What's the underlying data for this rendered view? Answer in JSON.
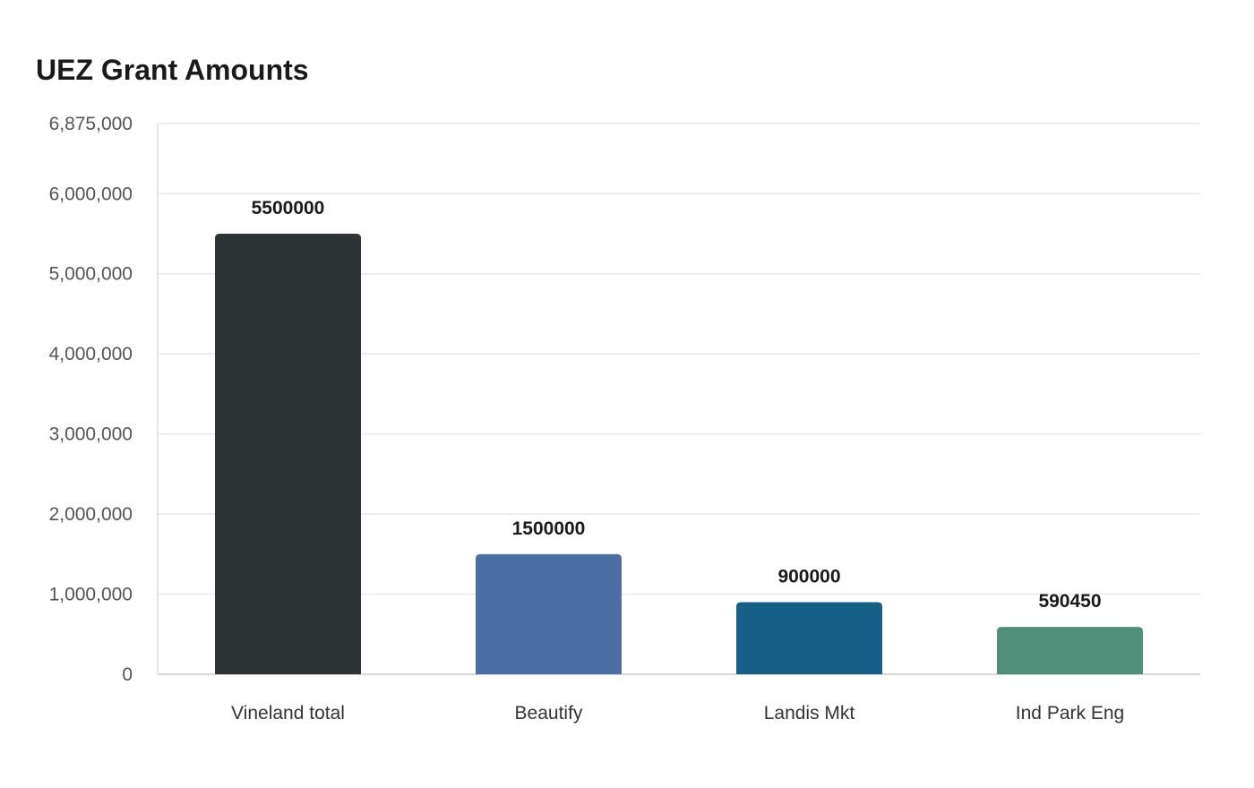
{
  "chart_data": {
    "type": "bar",
    "title": "UEZ Grant Amounts",
    "xlabel": "",
    "ylabel": "",
    "categories": [
      "Vineland total",
      "Beautify",
      "Landis Mkt",
      "Ind Park Eng"
    ],
    "values": [
      5500000,
      1500000,
      900000,
      590450
    ],
    "data_labels": [
      "5500000",
      "1500000",
      "900000",
      "590450"
    ],
    "colors": [
      "#2d3436",
      "#4a6fa5",
      "#166088",
      "#4f8f7a"
    ],
    "ylim": [
      0,
      6875000
    ],
    "yticks": [
      0,
      1000000,
      2000000,
      3000000,
      4000000,
      5000000,
      6000000,
      6875000
    ],
    "ytick_labels": [
      "0",
      "1,000,000",
      "2,000,000",
      "3,000,000",
      "4,000,000",
      "5,000,000",
      "6,000,000",
      "6,875,000"
    ],
    "grid": true,
    "legend": "none"
  }
}
